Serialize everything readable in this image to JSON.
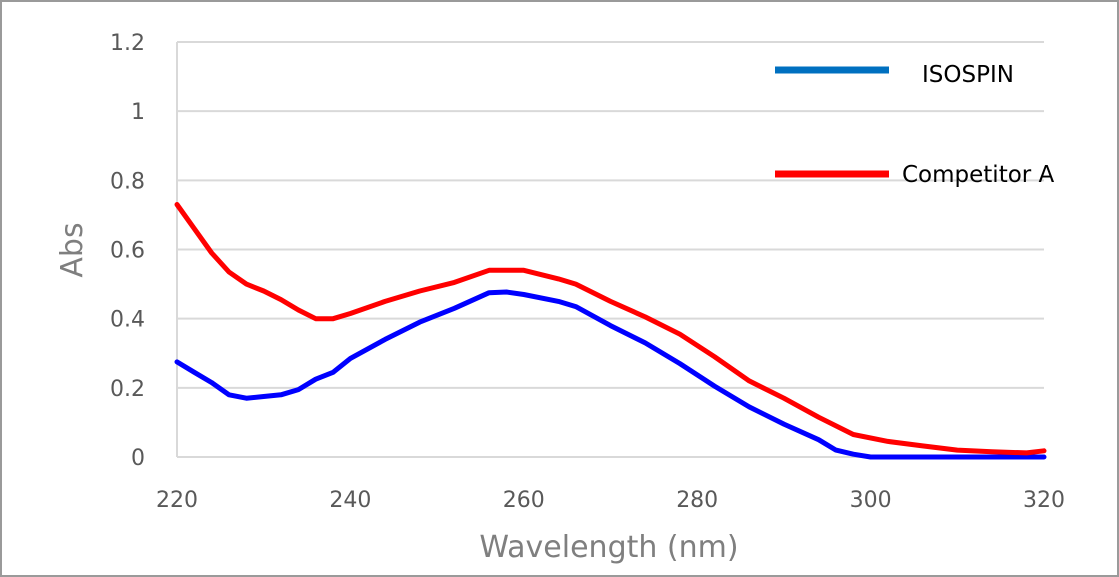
{
  "chart_data": {
    "type": "line",
    "title": "",
    "xlabel": "Wavelength (nm)",
    "ylabel": "Abs",
    "xlim": [
      220,
      320
    ],
    "ylim": [
      0,
      1.2
    ],
    "xticks": [
      "220",
      "240",
      "260",
      "280",
      "300",
      "320"
    ],
    "yticks": [
      "0",
      "0.2",
      "0.4",
      "0.6",
      "0.8",
      "1",
      "1.2"
    ],
    "grid": "horizontal",
    "legend_placement": "top-right",
    "series": [
      {
        "name": "ISOSPIN",
        "color": "#0000ff",
        "legend_color": "#0070c0",
        "x": [
          220,
          222,
          224,
          226,
          228,
          230,
          232,
          234,
          236,
          238,
          240,
          244,
          248,
          252,
          256,
          258,
          260,
          264,
          266,
          270,
          274,
          278,
          282,
          286,
          290,
          294,
          296,
          298,
          300,
          305,
          310,
          315,
          320
        ],
        "y": [
          0.275,
          0.245,
          0.215,
          0.18,
          0.17,
          0.175,
          0.18,
          0.195,
          0.225,
          0.245,
          0.285,
          0.34,
          0.39,
          0.43,
          0.475,
          0.477,
          0.47,
          0.45,
          0.435,
          0.38,
          0.33,
          0.27,
          0.205,
          0.145,
          0.095,
          0.05,
          0.02,
          0.008,
          0,
          0,
          0,
          0,
          0
        ]
      },
      {
        "name": "Competitor A",
        "color": "#ff0000",
        "legend_color": "#ff0000",
        "x": [
          220,
          222,
          224,
          226,
          228,
          230,
          232,
          234,
          236,
          238,
          240,
          244,
          248,
          252,
          256,
          258,
          260,
          264,
          266,
          270,
          274,
          278,
          282,
          286,
          290,
          294,
          298,
          302,
          306,
          310,
          314,
          318,
          320
        ],
        "y": [
          0.73,
          0.66,
          0.59,
          0.535,
          0.5,
          0.48,
          0.455,
          0.425,
          0.4,
          0.4,
          0.415,
          0.45,
          0.48,
          0.505,
          0.54,
          0.54,
          0.54,
          0.515,
          0.5,
          0.45,
          0.405,
          0.355,
          0.29,
          0.22,
          0.17,
          0.115,
          0.065,
          0.045,
          0.032,
          0.02,
          0.015,
          0.012,
          0.018
        ]
      }
    ]
  }
}
